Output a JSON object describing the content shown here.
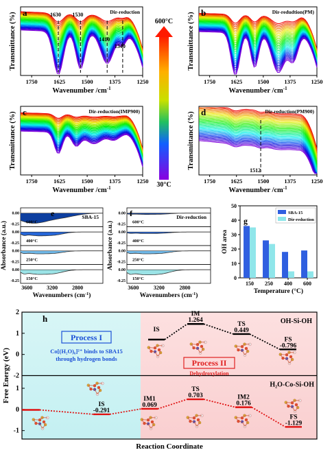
{
  "chart_data": [
    {
      "panel": "a",
      "type": "line",
      "title": "Dir-reduction",
      "xlabel": "Wavenumber /cm⁻¹",
      "ylabel": "Transmittance (%)",
      "xlim": [
        1800,
        1250
      ],
      "xticks": [
        1750,
        1625,
        1500,
        1375,
        1250
      ],
      "annotations": [
        "1630",
        "1530",
        "1410",
        "1340"
      ],
      "annotation_x": [
        1630,
        1530,
        1410,
        1340
      ],
      "temperature_range_c": [
        30,
        600
      ],
      "series_count": 30
    },
    {
      "panel": "b",
      "type": "line",
      "title": "Dir-redudtion(PM)",
      "xlabel": "Wavenumber /cm⁻¹",
      "ylabel": "Transmittance (%)",
      "xlim": [
        1800,
        1250
      ],
      "xticks": [
        1750,
        1625,
        1500,
        1375,
        1250
      ],
      "temperature_range_c": [
        30,
        600
      ],
      "series_count": 30
    },
    {
      "panel": "c",
      "type": "line",
      "title": "Dir-reduction(IMP900)",
      "xlabel": "Wavenumber /cm⁻¹",
      "ylabel": "Transmittance (%)",
      "xlim": [
        1800,
        1250
      ],
      "xticks": [
        1750,
        1625,
        1500,
        1375,
        1250
      ],
      "temperature_range_c": [
        30,
        600
      ],
      "series_count": 30
    },
    {
      "panel": "d",
      "type": "line",
      "title": "Dir-reduction(PM900)",
      "xlabel": "Wavenumber /cm⁻¹",
      "ylabel": "Transmittance (%)",
      "xlim": [
        1800,
        1250
      ],
      "xticks": [
        1750,
        1625,
        1500,
        1375,
        1250
      ],
      "annotations": [
        "1512"
      ],
      "annotation_x": [
        1512
      ],
      "temperature_range_c": [
        30,
        600
      ],
      "series_count": 30
    },
    {
      "panel": "colorbar",
      "type": "heatmap",
      "labels": [
        "600°C",
        "30°C"
      ],
      "range_c": [
        600,
        30
      ]
    },
    {
      "panel": "e",
      "type": "area",
      "title": "SBA-15",
      "xlabel": "Wavenumbers (cm⁻¹)",
      "ylabel": "Absorbance (a.u.)",
      "xlim": [
        3700,
        2400
      ],
      "xticks": [
        3600,
        3200,
        2800
      ],
      "yticks": [
        "0.00",
        "-0.25"
      ],
      "subplots": [
        "600°C",
        "400°C",
        "250°C",
        "150°C"
      ]
    },
    {
      "panel": "f",
      "type": "area",
      "title": "Dir-reduction",
      "xlabel": "Wavenumbers (cm⁻¹)",
      "ylabel": "Absorbance (a.u.)",
      "xlim": [
        3700,
        2400
      ],
      "xticks": [
        3600,
        3200,
        2800
      ],
      "yticks": [
        "0.00",
        "-0.25"
      ],
      "subplots": [
        "600°C",
        "400°C",
        "250°C",
        "150°C"
      ]
    },
    {
      "panel": "g",
      "type": "bar",
      "categories": [
        "150",
        "250",
        "400",
        "600"
      ],
      "series": [
        {
          "name": "SBA-15",
          "values": [
            36,
            26,
            18,
            19
          ],
          "color": "#2f5fe0"
        },
        {
          "name": "Dir-reduction",
          "values": [
            35,
            23.5,
            4.5,
            4.5
          ],
          "color": "#8fe6ea"
        }
      ],
      "xlabel": "Temperature (°C)",
      "ylabel": "OH area",
      "ylim": [
        0,
        50
      ],
      "yticks": [
        0,
        10,
        20,
        30,
        40,
        50
      ],
      "legend": "top-right"
    },
    {
      "panel": "h",
      "type": "line",
      "xlabel": "Reaction Coordinate",
      "ylabel": "Free Energy (eV)",
      "yticks_top": [
        "2",
        "1",
        "0",
        "-1"
      ],
      "yticks_bottom": [
        "-2",
        "1",
        "0",
        "-1"
      ],
      "process_i": {
        "title": "Process I",
        "line1": "Co[(H₂O)₆]²⁺ binds to SBA15",
        "line2": "through hydrogen bonds"
      },
      "process_ii": {
        "title": "Process II",
        "subtitle": "Dehydroxylation"
      },
      "top": {
        "name": "OH-Si-OH",
        "states": [
          {
            "label": "IS",
            "energy": 0
          },
          {
            "label": "IM",
            "energy": 1.264,
            "value_text": "1.264"
          },
          {
            "label": "TS",
            "energy": 0.449,
            "value_text": "0.449"
          },
          {
            "label": "FS",
            "energy": -0.796,
            "value_text": "-0.796"
          }
        ]
      },
      "bottom": {
        "name": "H₂O-Co-Si-OH",
        "states": [
          {
            "label": "",
            "energy": 0
          },
          {
            "label": "IS",
            "energy": -0.291,
            "value_text": "-0.291"
          },
          {
            "label": "IM1",
            "energy": 0.069,
            "value_text": "0.069"
          },
          {
            "label": "TS",
            "energy": 0.703,
            "value_text": "0.703"
          },
          {
            "label": "IM2",
            "energy": 0.176,
            "value_text": "0.176"
          },
          {
            "label": "FS",
            "energy": -1.129,
            "value_text": "-1.129"
          }
        ]
      }
    }
  ],
  "text": {
    "a": "a",
    "b": "b",
    "c": "c",
    "d": "d",
    "e": "e",
    "f": "f",
    "g": "g",
    "h": "h",
    "ir_ylabel": "Transmittance (%)",
    "ir_xlabel": "Wavenumber /cm",
    "ir_xlabel_sup": "-1",
    "abs_ylabel": "Absorbance (a.u.)",
    "abs_xlabel": "Wavenumbers (cm",
    "abs_xlabel_end": ")",
    "abs_xlabel_sup": "-1"
  }
}
